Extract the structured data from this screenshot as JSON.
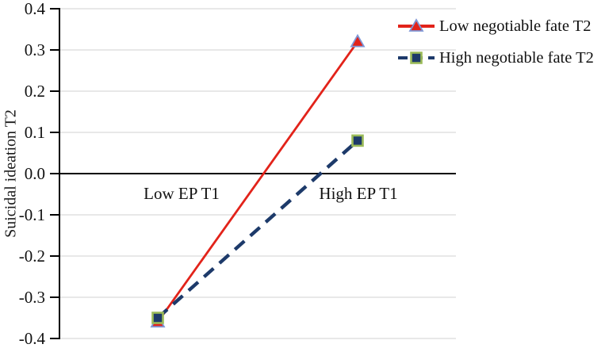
{
  "chart_data": {
    "type": "line",
    "title": "",
    "ylabel": "Suicidal ideation T2",
    "xlabel": "",
    "categories": [
      "Low EP T1",
      "High EP T1"
    ],
    "series": [
      {
        "name": "Low negotiable fate T2",
        "values": [
          -0.36,
          0.32
        ],
        "line_color": "#e2231a",
        "line_style": "solid",
        "marker": "triangle",
        "marker_fill": "#e2231a",
        "marker_edge": "#7f97d6"
      },
      {
        "name": "High negotiable fate T2",
        "values": [
          -0.35,
          0.08
        ],
        "line_color": "#1d3a6a",
        "line_style": "dashed",
        "marker": "square",
        "marker_fill": "#1d3a6a",
        "marker_edge": "#9bbb59"
      }
    ],
    "ylim": [
      -0.4,
      0.4
    ],
    "ytick_labels": [
      "0.4",
      "0.3",
      "0.2",
      "0.1",
      "0.0",
      "-0.1",
      "-0.2",
      "-0.3",
      "-0.4"
    ],
    "grid": "horizontal",
    "legend_position": "top-right",
    "colors": {
      "grid": "#d9d9d9",
      "axis": "#000000",
      "zero_line": "#000000",
      "background": "#ffffff"
    }
  }
}
